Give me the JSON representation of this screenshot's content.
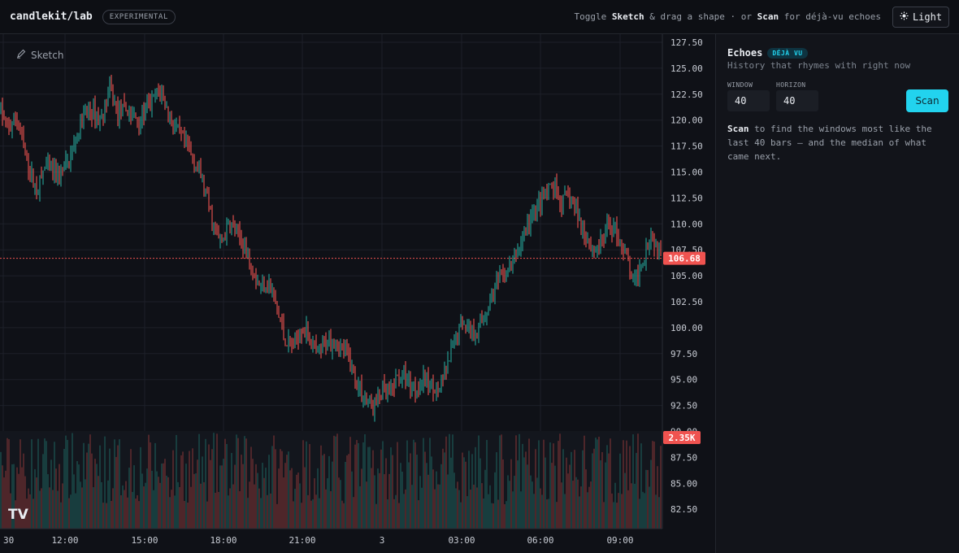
{
  "header": {
    "brand": "candlekit/lab",
    "badge": "EXPERIMENTAL",
    "hint_toggle": "Toggle ",
    "hint_sketch": "Sketch",
    "hint_middle": " & drag a shape · or ",
    "hint_scan": "Scan",
    "hint_end": " for déjà-vu echoes",
    "theme_button": "Light",
    "theme_icon": "sun-icon"
  },
  "toolbar": {
    "sketch_label": "Sketch",
    "sketch_icon": "pen-icon"
  },
  "chart": {
    "price_labels": [
      "127.50",
      "125.00",
      "122.50",
      "120.00",
      "117.50",
      "115.00",
      "112.50",
      "110.00",
      "107.50",
      "105.00",
      "102.50",
      "100.00",
      "97.50",
      "95.00",
      "92.50",
      "90.00",
      "87.50",
      "85.00",
      "82.50"
    ],
    "time_labels": [
      "30",
      "12:00",
      "15:00",
      "18:00",
      "21:00",
      "3",
      "03:00",
      "06:00",
      "09:00"
    ],
    "last_price": "106.68",
    "last_volume": "2.35K",
    "up_color": "#26a69a",
    "down_color": "#ef5350",
    "logo": "TV"
  },
  "chart_data": {
    "type": "candlestick",
    "y_range": [
      80.5,
      127.5
    ],
    "last_price": 106.68,
    "path": [
      [
        0,
        121
      ],
      [
        10,
        119
      ],
      [
        20,
        120.5
      ],
      [
        30,
        117
      ],
      [
        45,
        113
      ],
      [
        55,
        115.5
      ],
      [
        70,
        114.5
      ],
      [
        85,
        116
      ],
      [
        100,
        120
      ],
      [
        110,
        121
      ],
      [
        125,
        120
      ],
      [
        135,
        123
      ],
      [
        145,
        120.5
      ],
      [
        155,
        121
      ],
      [
        170,
        120
      ],
      [
        185,
        121.5
      ],
      [
        198,
        123
      ],
      [
        210,
        120
      ],
      [
        225,
        118
      ],
      [
        240,
        116
      ],
      [
        250,
        114
      ],
      [
        262,
        110
      ],
      [
        272,
        108
      ],
      [
        282,
        110
      ],
      [
        292,
        109
      ],
      [
        300,
        108
      ],
      [
        310,
        106
      ],
      [
        320,
        104
      ],
      [
        330,
        104.5
      ],
      [
        340,
        102
      ],
      [
        350,
        99
      ],
      [
        360,
        98
      ],
      [
        370,
        100
      ],
      [
        380,
        99.5
      ],
      [
        390,
        97
      ],
      [
        400,
        98.5
      ],
      [
        410,
        99
      ],
      [
        420,
        98
      ],
      [
        430,
        97
      ],
      [
        440,
        94.5
      ],
      [
        450,
        93
      ],
      [
        460,
        92.5
      ],
      [
        470,
        94
      ],
      [
        480,
        93.5
      ],
      [
        490,
        95.5
      ],
      [
        500,
        95
      ],
      [
        510,
        94
      ],
      [
        520,
        95
      ],
      [
        530,
        94.5
      ],
      [
        540,
        94
      ],
      [
        550,
        96
      ],
      [
        560,
        99
      ],
      [
        570,
        101
      ],
      [
        580,
        99.5
      ],
      [
        590,
        100
      ],
      [
        600,
        102
      ],
      [
        610,
        104
      ],
      [
        620,
        105
      ],
      [
        630,
        106
      ],
      [
        640,
        108
      ],
      [
        650,
        110
      ],
      [
        660,
        111.5
      ],
      [
        670,
        112.5
      ],
      [
        680,
        113.5
      ],
      [
        690,
        112
      ],
      [
        700,
        112.5
      ],
      [
        710,
        111
      ],
      [
        720,
        109
      ],
      [
        730,
        107.5
      ],
      [
        740,
        108
      ],
      [
        750,
        110
      ],
      [
        760,
        109
      ],
      [
        770,
        107
      ],
      [
        780,
        104
      ],
      [
        790,
        106.5
      ],
      [
        800,
        109
      ],
      [
        808,
        108
      ],
      [
        815,
        106.68
      ]
    ],
    "volume": "random bars, max ≈ 2.35K"
  }
}
